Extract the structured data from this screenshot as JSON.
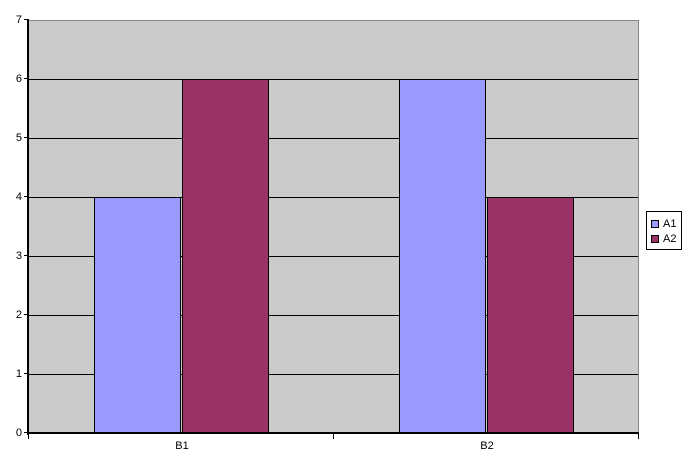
{
  "chart_data": {
    "type": "bar",
    "title": "",
    "xlabel": "",
    "ylabel": "",
    "categories": [
      "B1",
      "B2"
    ],
    "series": [
      {
        "name": "A1",
        "color": "#9999FF",
        "values": [
          4,
          6
        ]
      },
      {
        "name": "A2",
        "color": "#993366",
        "values": [
          6,
          4
        ]
      }
    ],
    "ylim": [
      0,
      7
    ],
    "ytick_step": 1,
    "yticks": [
      0,
      1,
      2,
      3,
      4,
      5,
      6,
      7
    ],
    "grid": true,
    "legend_position": "right",
    "legend_entries": [
      "A1",
      "A2"
    ],
    "colors": {
      "plot_background": "#CBCBCB",
      "page_background": "#FFFFFF",
      "gridline": "#000000",
      "axis": "#000000",
      "plot_border": "#868686",
      "legend_background": "#FFFFFF",
      "legend_border": "#000000",
      "series_a1": "#9999FF",
      "series_a2": "#993366"
    }
  }
}
